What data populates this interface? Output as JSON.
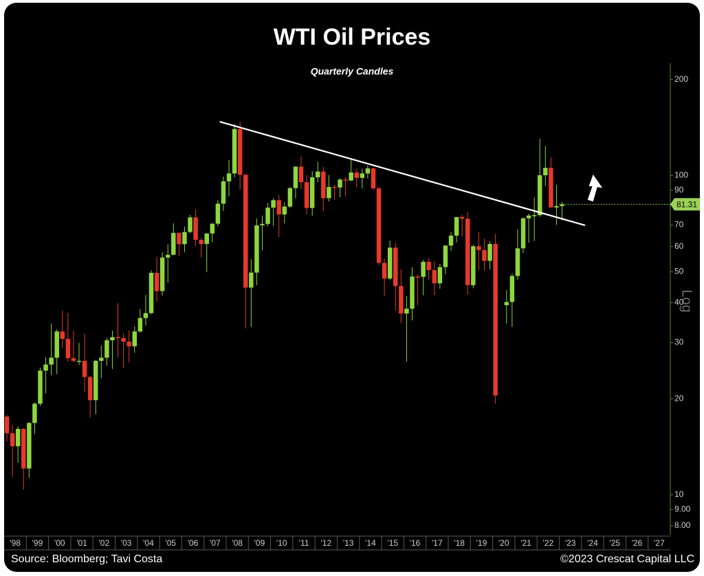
{
  "chart_data": {
    "type": "candlestick",
    "title": "WTI Oil Prices",
    "subtitle": "Quarterly Candles",
    "y_axis_label": "Log",
    "source": "Source: Bloomberg; Tavi Costa",
    "copyright": "©2023 Crescat Capital LLC",
    "log_scale": true,
    "up_color": "#8ed63f",
    "down_color": "#e6392b",
    "xlim": [
      1998,
      2028
    ],
    "xticks": [
      {
        "value": 1998,
        "label": "'98"
      },
      {
        "value": 1999,
        "label": "'99"
      },
      {
        "value": 2000,
        "label": "'00"
      },
      {
        "value": 2001,
        "label": "'01"
      },
      {
        "value": 2002,
        "label": "'02"
      },
      {
        "value": 2003,
        "label": "'03"
      },
      {
        "value": 2004,
        "label": "'04"
      },
      {
        "value": 2005,
        "label": "'05"
      },
      {
        "value": 2006,
        "label": "'06"
      },
      {
        "value": 2007,
        "label": "'07"
      },
      {
        "value": 2008,
        "label": "'08"
      },
      {
        "value": 2009,
        "label": "'09"
      },
      {
        "value": 2010,
        "label": "'10"
      },
      {
        "value": 2011,
        "label": "'11"
      },
      {
        "value": 2012,
        "label": "'12"
      },
      {
        "value": 2013,
        "label": "'13"
      },
      {
        "value": 2014,
        "label": "'14"
      },
      {
        "value": 2015,
        "label": "'15"
      },
      {
        "value": 2016,
        "label": "'16"
      },
      {
        "value": 2017,
        "label": "'17"
      },
      {
        "value": 2018,
        "label": "'18"
      },
      {
        "value": 2019,
        "label": "'19"
      },
      {
        "value": 2020,
        "label": "'20"
      },
      {
        "value": 2021,
        "label": "'21"
      },
      {
        "value": 2022,
        "label": "'22"
      },
      {
        "value": 2023,
        "label": "'23"
      },
      {
        "value": 2024,
        "label": "'24"
      },
      {
        "value": 2025,
        "label": "'25"
      },
      {
        "value": 2026,
        "label": "'26"
      },
      {
        "value": 2027,
        "label": "'27"
      }
    ],
    "ylim": [
      7.5,
      225
    ],
    "yticks": [
      200,
      100,
      90,
      70,
      60,
      50,
      40,
      30,
      20,
      10,
      {
        "value": 9,
        "label": "9.00"
      },
      {
        "value": 8,
        "label": "8.00"
      }
    ],
    "x": [
      1998,
      1998.25,
      1998.5,
      1998.75,
      1999,
      1999.25,
      1999.5,
      1999.75,
      2000,
      2000.25,
      2000.5,
      2000.75,
      2001,
      2001.25,
      2001.5,
      2001.75,
      2002,
      2002.25,
      2002.5,
      2002.75,
      2003,
      2003.25,
      2003.5,
      2003.75,
      2004,
      2004.25,
      2004.5,
      2004.75,
      2005,
      2005.25,
      2005.5,
      2005.75,
      2006,
      2006.25,
      2006.5,
      2006.75,
      2007,
      2007.25,
      2007.5,
      2007.75,
      2008,
      2008.25,
      2008.5,
      2008.75,
      2009,
      2009.25,
      2009.5,
      2009.75,
      2010,
      2010.25,
      2010.5,
      2010.75,
      2011,
      2011.25,
      2011.5,
      2011.75,
      2012,
      2012.25,
      2012.5,
      2012.75,
      2013,
      2013.25,
      2013.5,
      2013.75,
      2014,
      2014.25,
      2014.5,
      2014.75,
      2015,
      2015.25,
      2015.5,
      2015.75,
      2016,
      2016.25,
      2016.5,
      2016.75,
      2017,
      2017.25,
      2017.5,
      2017.75,
      2018,
      2018.25,
      2018.5,
      2018.75,
      2019,
      2019.25,
      2019.5,
      2019.75,
      2020,
      2020.25,
      2020.5,
      2020.75,
      2021,
      2021.25,
      2021.5,
      2021.75,
      2022,
      2022.25,
      2022.5,
      2022.75,
      2023
    ],
    "open": [
      17.6,
      15.6,
      14.2,
      16.1,
      12.1,
      16.8,
      19.3,
      24.5,
      25.6,
      26.9,
      32.5,
      30.8,
      26.8,
      26.3,
      26.3,
      23.4,
      19.8,
      26.3,
      26.9,
      30.5,
      31.2,
      31.0,
      30.2,
      29.2,
      32.5,
      35.8,
      37.1,
      49.6,
      43.5,
      55.4,
      56.5,
      66.2,
      61.0,
      66.6,
      74.0,
      62.9,
      61.1,
      65.9,
      70.7,
      81.7,
      96.0,
      101.6,
      140.0,
      100.6,
      44.6,
      49.7,
      69.9,
      70.6,
      79.4,
      83.8,
      75.6,
      80.0,
      91.4,
      106.7,
      95.4,
      79.2,
      98.8,
      103.0,
      85.0,
      92.2,
      91.8,
      97.2,
      96.6,
      102.3,
      98.4,
      101.6,
      105.4,
      91.2,
      53.3,
      47.6,
      59.5,
      45.1,
      37.0,
      38.3,
      48.3,
      48.2,
      53.7,
      50.6,
      46.0,
      51.7,
      60.4,
      64.9,
      74.2,
      73.3,
      45.4,
      60.1,
      58.5,
      54.1,
      61.1,
      null,
      39.3,
      40.2,
      48.5,
      59.2,
      73.5,
      75.0,
      75.2,
      100.3,
      105.8,
      79.5,
      80.3
    ],
    "high": [
      17.8,
      16.5,
      16.4,
      16.2,
      16.9,
      19.5,
      25.0,
      27.0,
      34.4,
      33.0,
      37.8,
      37.2,
      32.7,
      29.9,
      32.0,
      23.6,
      26.5,
      29.4,
      31.0,
      32.7,
      39.9,
      32.0,
      32.8,
      33.7,
      38.2,
      42.3,
      50.5,
      55.7,
      57.6,
      60.9,
      70.9,
      66.4,
      69.2,
      75.4,
      78.4,
      63.9,
      66.0,
      71.0,
      83.9,
      99.3,
      111.8,
      145.0,
      147.3,
      101.3,
      54.7,
      73.4,
      75.0,
      82.0,
      85.0,
      87.2,
      82.5,
      92.1,
      107.0,
      114.8,
      100.6,
      103.4,
      110.6,
      106.4,
      100.4,
      93.7,
      98.2,
      98.8,
      112.2,
      104.9,
      105.2,
      107.7,
      105.9,
      92.5,
      55.0,
      62.6,
      61.6,
      50.9,
      41.9,
      51.7,
      49.0,
      54.5,
      55.2,
      53.8,
      52.9,
      60.5,
      66.7,
      72.9,
      75.3,
      76.9,
      60.7,
      66.6,
      63.4,
      62.3,
      65.7,
      null,
      43.8,
      49.4,
      67.9,
      74.0,
      76.0,
      85.4,
      130.5,
      123.7,
      114.0,
      93.6,
      82.7
    ],
    "low": [
      14.7,
      11.4,
      12.6,
      10.4,
      11.3,
      15.5,
      19.0,
      20.8,
      23.7,
      23.9,
      28.9,
      26.2,
      26.0,
      25.5,
      21.0,
      17.5,
      17.9,
      23.2,
      25.4,
      24.8,
      27.0,
      25.0,
      26.0,
      27.9,
      32.2,
      33.9,
      36.8,
      40.3,
      42.1,
      46.2,
      56.3,
      56.1,
      57.6,
      66.0,
      60.2,
      55.4,
      49.9,
      61.9,
      69.6,
      77.5,
      86.1,
      98.7,
      90.5,
      33.2,
      33.6,
      45.4,
      58.3,
      69.5,
      69.5,
      64.2,
      70.8,
      79.2,
      84.9,
      90.6,
      75.7,
      74.9,
      95.4,
      77.3,
      83.0,
      84.1,
      85.6,
      86.1,
      96.0,
      91.8,
      91.2,
      98.0,
      90.4,
      52.4,
      42.0,
      47.1,
      37.8,
      34.5,
      26.1,
      35.2,
      39.2,
      42.2,
      47.1,
      42.1,
      44.2,
      49.1,
      58.1,
      61.8,
      64.4,
      42.4,
      44.4,
      50.6,
      50.5,
      50.9,
      19.3,
      null,
      34.4,
      33.6,
      47.2,
      57.3,
      61.7,
      62.4,
      74.3,
      92.9,
      79.5,
      70.1,
      72.5
    ],
    "close": [
      15.6,
      14.2,
      16.1,
      12.1,
      16.8,
      19.3,
      24.5,
      25.6,
      26.9,
      32.5,
      30.8,
      26.8,
      26.3,
      26.3,
      23.4,
      19.8,
      26.3,
      26.9,
      30.5,
      31.2,
      31.0,
      30.2,
      29.2,
      32.5,
      35.8,
      37.1,
      49.6,
      43.5,
      55.4,
      56.5,
      66.2,
      61.0,
      66.6,
      74.0,
      62.9,
      61.1,
      65.9,
      70.7,
      81.7,
      96.0,
      101.6,
      140.0,
      100.6,
      44.6,
      49.7,
      69.9,
      70.6,
      79.4,
      83.8,
      75.6,
      80.0,
      91.4,
      106.7,
      95.4,
      79.2,
      98.8,
      103.0,
      85.0,
      92.2,
      91.8,
      97.2,
      96.6,
      102.3,
      98.4,
      101.6,
      105.4,
      91.2,
      53.3,
      47.6,
      59.5,
      45.1,
      37.0,
      38.3,
      48.3,
      48.2,
      53.7,
      50.6,
      46.0,
      51.7,
      60.4,
      64.9,
      74.2,
      73.3,
      45.4,
      60.1,
      58.5,
      54.1,
      61.1,
      20.5,
      null,
      40.2,
      48.5,
      59.2,
      73.5,
      75.0,
      75.2,
      100.3,
      105.8,
      79.5,
      80.3,
      81.31
    ],
    "last_price": 81.31,
    "trendline": {
      "x": [
        2007.71,
        2024.16
      ],
      "y": [
        147.6,
        69.9
      ]
    }
  }
}
